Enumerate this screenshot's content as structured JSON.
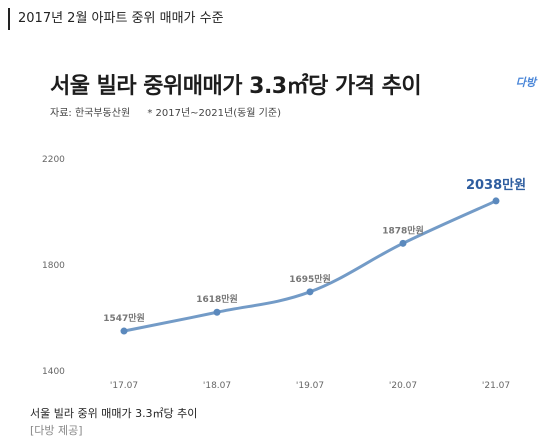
{
  "header": {
    "title": "2017년 2월 아파트 중위 매매가 수준"
  },
  "chart_data": {
    "type": "line",
    "title": "서울 빌라 중위매매가 3.3㎡당 가격 추이",
    "source": "자료: 한국부동산원",
    "note": "* 2017년~2021년(동월 기준)",
    "brand": "다방",
    "categories": [
      "'17.07",
      "'18.07",
      "'19.07",
      "'20.07",
      "'21.07"
    ],
    "values": [
      1547,
      1618,
      1695,
      1878,
      2038
    ],
    "data_labels": [
      "1547만원",
      "1618만원",
      "1695만원",
      "1878만원",
      "2038만원"
    ],
    "ylim": [
      1400,
      2200
    ],
    "yticks": [
      1400,
      1800,
      2200
    ],
    "grid": false,
    "line_color": "#5b89bd",
    "label_color": "#777777",
    "highlight_color": "#2e5d9f"
  },
  "caption": {
    "text": "서울 빌라 중위 매매가 3.3㎡당 추이",
    "credit": "[다방 제공]"
  }
}
